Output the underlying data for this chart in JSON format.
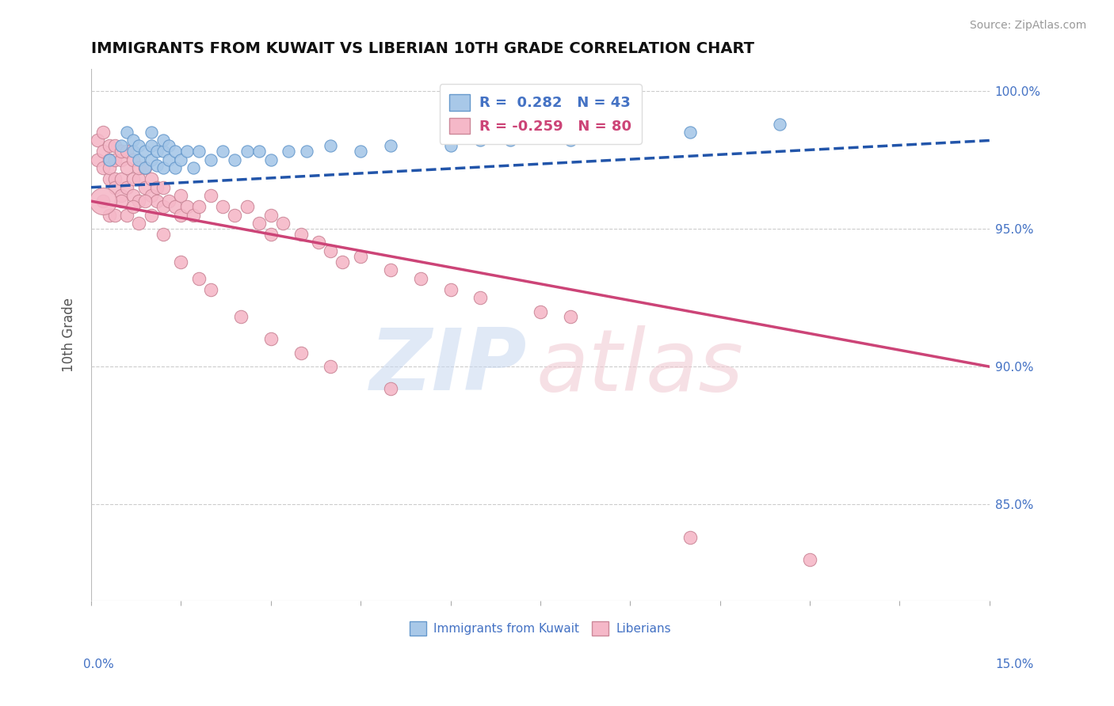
{
  "title": "IMMIGRANTS FROM KUWAIT VS LIBERIAN 10TH GRADE CORRELATION CHART",
  "source": "Source: ZipAtlas.com",
  "ylabel": "10th Grade",
  "r_kuwait": 0.282,
  "n_kuwait": 43,
  "r_liberian": -0.259,
  "n_liberian": 80,
  "color_kuwait": "#a8c8e8",
  "color_kuwait_edge": "#6699cc",
  "color_liberian": "#f5b8c8",
  "color_liberian_edge": "#cc8899",
  "color_kuwait_line": "#2255aa",
  "color_liberian_line": "#cc4477",
  "xlim": [
    0.0,
    0.15
  ],
  "ylim": [
    0.815,
    1.008
  ],
  "yticks": [
    0.85,
    0.9,
    0.95,
    1.0
  ],
  "ytick_labels": [
    "85.0%",
    "90.0%",
    "95.0%",
    "100.0%"
  ],
  "kuwait_x": [
    0.003,
    0.005,
    0.006,
    0.007,
    0.007,
    0.008,
    0.008,
    0.009,
    0.009,
    0.01,
    0.01,
    0.01,
    0.011,
    0.011,
    0.012,
    0.012,
    0.012,
    0.013,
    0.013,
    0.014,
    0.014,
    0.015,
    0.016,
    0.017,
    0.018,
    0.02,
    0.022,
    0.024,
    0.026,
    0.028,
    0.03,
    0.033,
    0.036,
    0.04,
    0.045,
    0.05,
    0.06,
    0.065,
    0.07,
    0.08,
    0.09,
    0.1,
    0.115
  ],
  "kuwait_y": [
    0.975,
    0.98,
    0.985,
    0.982,
    0.978,
    0.975,
    0.98,
    0.972,
    0.978,
    0.975,
    0.98,
    0.985,
    0.973,
    0.978,
    0.972,
    0.978,
    0.982,
    0.975,
    0.98,
    0.972,
    0.978,
    0.975,
    0.978,
    0.972,
    0.978,
    0.975,
    0.978,
    0.975,
    0.978,
    0.978,
    0.975,
    0.978,
    0.978,
    0.98,
    0.978,
    0.98,
    0.98,
    0.982,
    0.982,
    0.982,
    0.984,
    0.985,
    0.988
  ],
  "liberian_x": [
    0.001,
    0.001,
    0.002,
    0.002,
    0.002,
    0.003,
    0.003,
    0.003,
    0.003,
    0.004,
    0.004,
    0.004,
    0.004,
    0.005,
    0.005,
    0.005,
    0.005,
    0.006,
    0.006,
    0.006,
    0.007,
    0.007,
    0.007,
    0.008,
    0.008,
    0.008,
    0.009,
    0.009,
    0.01,
    0.01,
    0.011,
    0.011,
    0.012,
    0.012,
    0.013,
    0.014,
    0.015,
    0.015,
    0.016,
    0.017,
    0.018,
    0.02,
    0.022,
    0.024,
    0.026,
    0.028,
    0.03,
    0.03,
    0.032,
    0.035,
    0.038,
    0.04,
    0.042,
    0.045,
    0.05,
    0.055,
    0.06,
    0.065,
    0.075,
    0.08,
    0.002,
    0.003,
    0.004,
    0.005,
    0.006,
    0.007,
    0.008,
    0.009,
    0.01,
    0.012,
    0.015,
    0.018,
    0.02,
    0.025,
    0.03,
    0.035,
    0.04,
    0.05,
    0.1,
    0.12
  ],
  "liberian_y": [
    0.975,
    0.982,
    0.972,
    0.978,
    0.985,
    0.968,
    0.975,
    0.98,
    0.972,
    0.968,
    0.975,
    0.98,
    0.965,
    0.968,
    0.975,
    0.978,
    0.962,
    0.972,
    0.978,
    0.965,
    0.968,
    0.975,
    0.962,
    0.968,
    0.972,
    0.96,
    0.965,
    0.972,
    0.962,
    0.968,
    0.96,
    0.965,
    0.958,
    0.965,
    0.96,
    0.958,
    0.955,
    0.962,
    0.958,
    0.955,
    0.958,
    0.962,
    0.958,
    0.955,
    0.958,
    0.952,
    0.955,
    0.948,
    0.952,
    0.948,
    0.945,
    0.942,
    0.938,
    0.94,
    0.935,
    0.932,
    0.928,
    0.925,
    0.92,
    0.918,
    0.96,
    0.955,
    0.955,
    0.96,
    0.955,
    0.958,
    0.952,
    0.96,
    0.955,
    0.948,
    0.938,
    0.932,
    0.928,
    0.918,
    0.91,
    0.905,
    0.9,
    0.892,
    0.838,
    0.83
  ],
  "liberian_large_x": [
    0.002
  ],
  "liberian_large_y": [
    0.96
  ],
  "liberian_large_s": 600
}
